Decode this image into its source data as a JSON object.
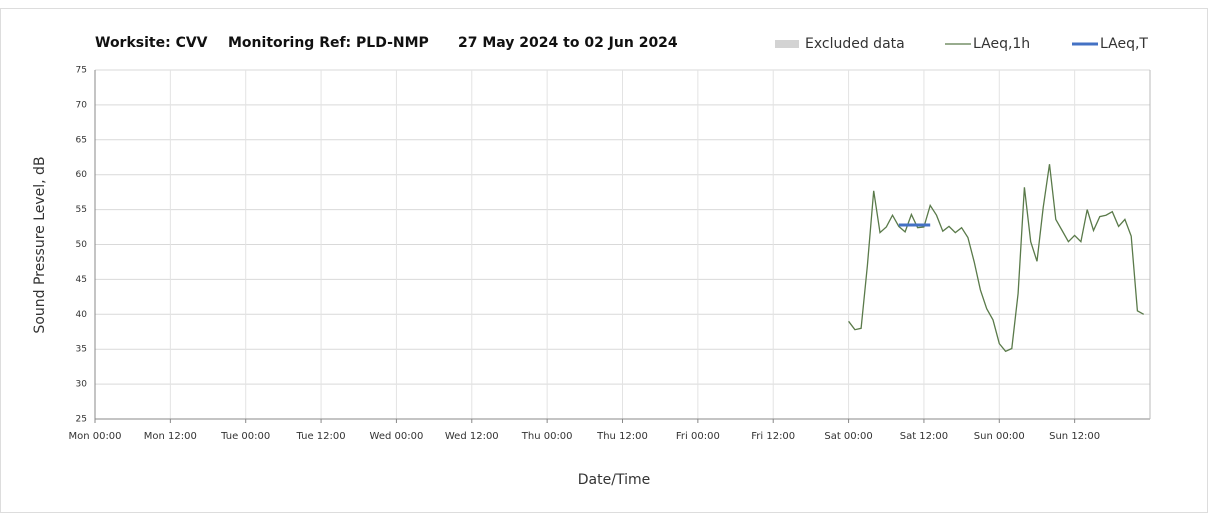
{
  "chart_data": {
    "type": "line",
    "title": [
      "Worksite: CVV",
      "Monitoring Ref: PLD-NMP",
      "27 May 2024 to 02 Jun 2024"
    ],
    "xlabel": "Date/Time",
    "ylabel": "Sound Pressure Level, dB",
    "xlim": [
      0,
      168
    ],
    "xticks": [
      {
        "value": 0,
        "label": "Mon 00:00"
      },
      {
        "value": 12,
        "label": "Mon 12:00"
      },
      {
        "value": 24,
        "label": "Tue 00:00"
      },
      {
        "value": 36,
        "label": "Tue 12:00"
      },
      {
        "value": 48,
        "label": "Wed 00:00"
      },
      {
        "value": 60,
        "label": "Wed 12:00"
      },
      {
        "value": 72,
        "label": "Thu 00:00"
      },
      {
        "value": 84,
        "label": "Thu 12:00"
      },
      {
        "value": 96,
        "label": "Fri 00:00"
      },
      {
        "value": 108,
        "label": "Fri 12:00"
      },
      {
        "value": 120,
        "label": "Sat 00:00"
      },
      {
        "value": 132,
        "label": "Sat 12:00"
      },
      {
        "value": 144,
        "label": "Sun 00:00"
      },
      {
        "value": 156,
        "label": "Sun 12:00"
      }
    ],
    "ylim": [
      25,
      75
    ],
    "yticks": [
      25,
      30,
      35,
      40,
      45,
      50,
      55,
      60,
      65,
      70,
      75
    ],
    "grid": true,
    "legend": "top-right",
    "series": [
      {
        "name": "Excluded data",
        "color": "#d3d3d3",
        "style": "area",
        "x": [],
        "values": []
      },
      {
        "name": "LAeq,1h",
        "color": "#5a7a4a",
        "style": "line",
        "x": [
          120,
          121,
          122,
          123,
          124,
          125,
          126,
          127,
          128,
          129,
          130,
          131,
          132,
          133,
          134,
          135,
          136,
          137,
          138,
          139,
          140,
          141,
          142,
          143,
          144,
          145,
          146,
          147,
          148,
          149,
          150,
          151,
          152,
          153,
          154,
          155,
          156,
          157,
          158,
          159,
          160,
          161,
          162,
          163,
          164,
          165,
          166,
          167
        ],
        "values": [
          39,
          37.8,
          38,
          47,
          57.7,
          51.7,
          52.5,
          54.2,
          52.6,
          51.8,
          54.3,
          52.4,
          52.5,
          55.6,
          54.2,
          51.9,
          52.6,
          51.7,
          52.4,
          51,
          47.5,
          43.5,
          40.8,
          39.2,
          35.8,
          34.7,
          35.1,
          43,
          58.2,
          50.4,
          47.6,
          55.3,
          61.5,
          53.6,
          52,
          50.4,
          51.3,
          50.4,
          55,
          52,
          54,
          54.2,
          54.7,
          52.6,
          53.6,
          51.2,
          40.5,
          40
        ]
      },
      {
        "name": "LAeq,T",
        "color": "#4472c4",
        "style": "thick",
        "x": [
          128,
          133
        ],
        "values": [
          52.8,
          52.8
        ]
      }
    ]
  }
}
